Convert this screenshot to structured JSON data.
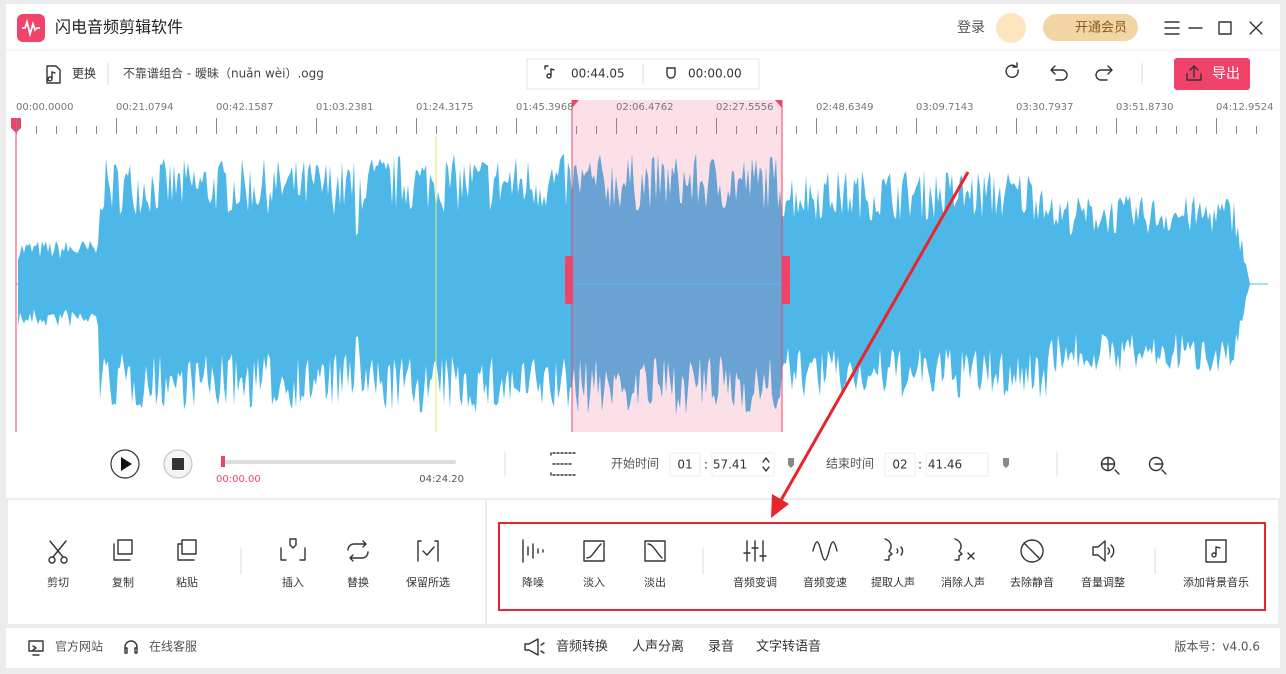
{
  "app": {
    "title": "闪电音频剪辑软件",
    "login": "登录",
    "vip": "开通会员"
  },
  "file": {
    "change": "更换",
    "name": "不靠谱组合 - 暧昧（nuǎn wèi）.ogg",
    "selection_duration": "00:44.05",
    "position": "00:00.00",
    "export": "导出"
  },
  "timeline": {
    "labels": [
      "00:00.0000",
      "00:21.0794",
      "00:42.1587",
      "01:03.2381",
      "01:24.3175",
      "01:45.3968",
      "02:06.4762",
      "02:27.5556",
      "02:48.6349",
      "03:09.7143",
      "03:30.7937",
      "03:51.8730",
      "04:12.9524"
    ]
  },
  "player": {
    "current": "00:00.00",
    "total": "04:24.20",
    "start_label": "开始时间",
    "start_min": "01",
    "start_sec": "57.41",
    "end_label": "结束时间",
    "end_min": "02",
    "end_sec": "41.46",
    "separator": ":"
  },
  "tools": {
    "edit": [
      "剪切",
      "复制",
      "粘贴",
      "插入",
      "替换",
      "保留所选"
    ],
    "effects": [
      "降噪",
      "淡入",
      "淡出",
      "音频变调",
      "音频变速",
      "提取人声",
      "消除人声",
      "去除静音",
      "音量调整",
      "添加背景音乐"
    ]
  },
  "footer": {
    "links": [
      "官方网站",
      "在线客服"
    ],
    "features": [
      "音频转换",
      "人声分离",
      "录音",
      "文字转语音"
    ],
    "version": "版本号：v4.0.6"
  }
}
